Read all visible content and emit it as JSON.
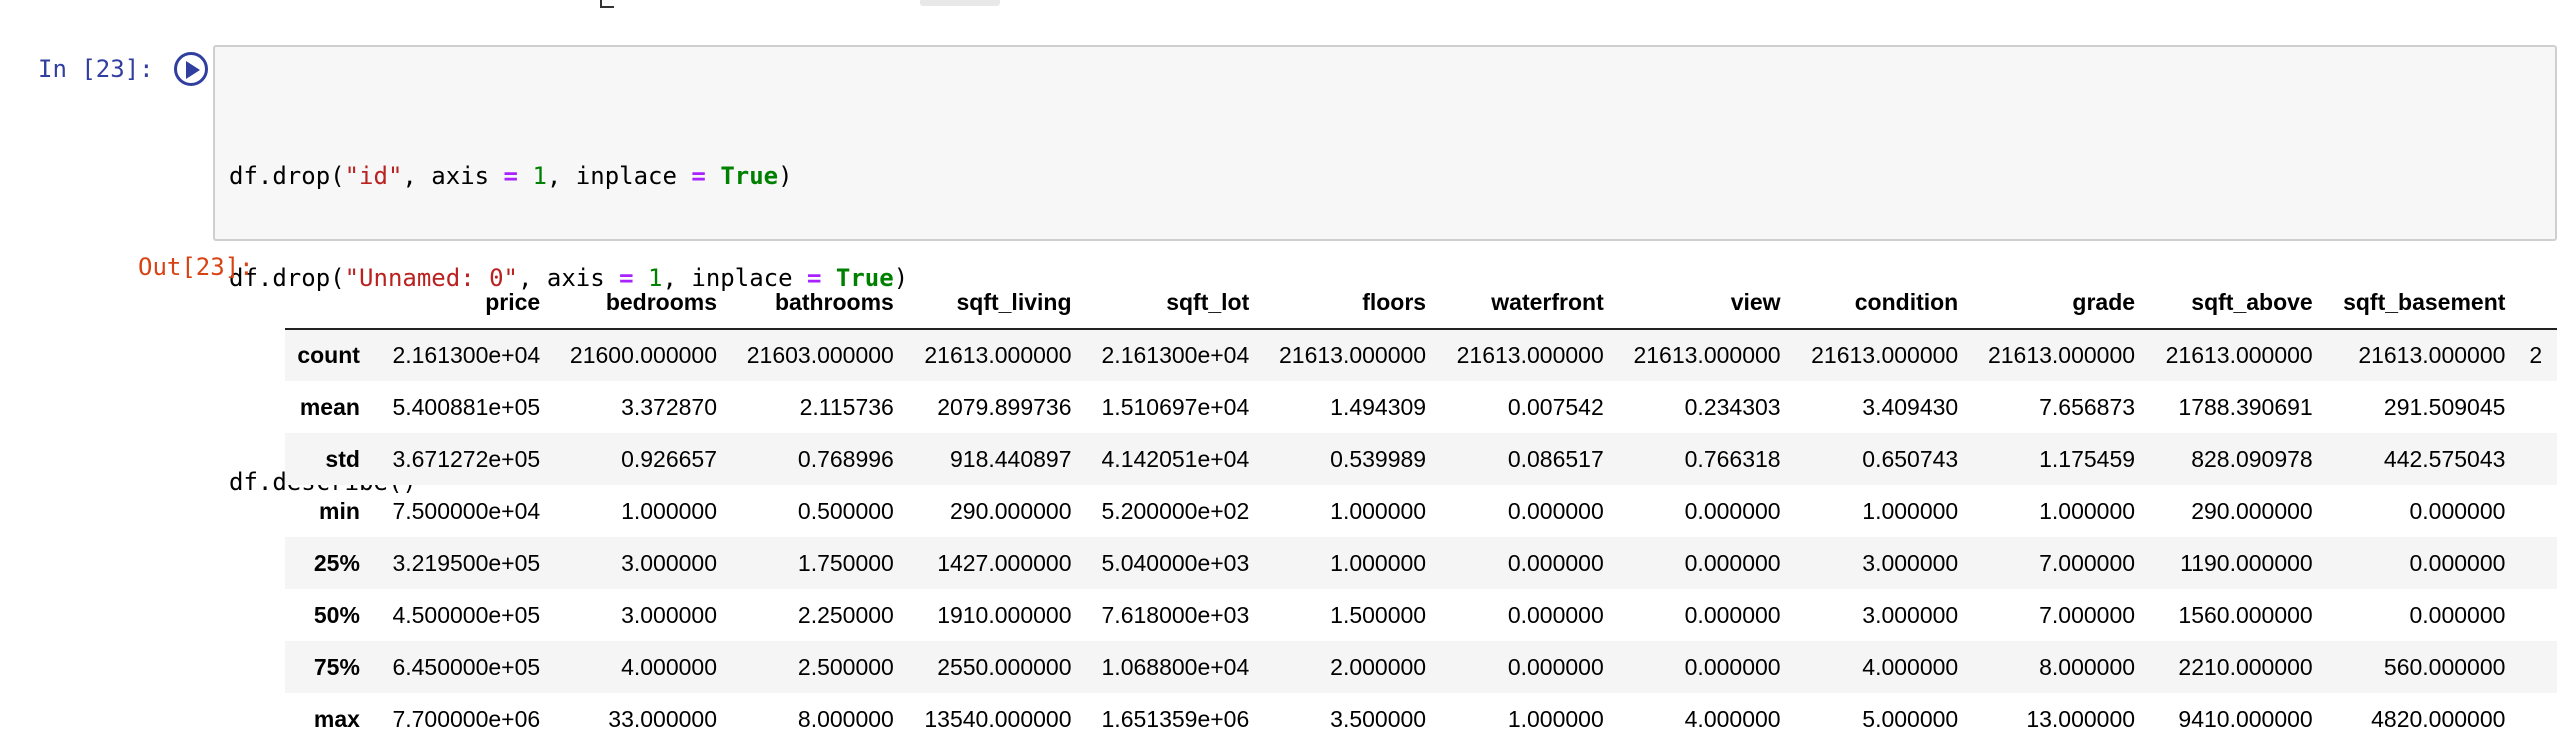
{
  "input_cell": {
    "prompt": "In [23]:",
    "code": {
      "l1_a": "df.drop(",
      "l1_str": "\"id\"",
      "l1_b": ", axis ",
      "l1_op": "=",
      "l1_c": " ",
      "l1_num": "1",
      "l1_d": ", inplace ",
      "l1_op2": "=",
      "l1_e": " ",
      "l1_kw": "True",
      "l1_f": ")",
      "l2_a": "df.drop(",
      "l2_str": "\"Unnamed: 0\"",
      "l2_b": ", axis ",
      "l2_op": "=",
      "l2_c": " ",
      "l2_num": "1",
      "l2_d": ", inplace ",
      "l2_op2": "=",
      "l2_e": " ",
      "l2_kw": "True",
      "l2_f": ")",
      "l4": "df.describe()"
    }
  },
  "output_cell": {
    "prompt": "Out[23]:",
    "table": {
      "columns": [
        "price",
        "bedrooms",
        "bathrooms",
        "sqft_living",
        "sqft_lot",
        "floors",
        "waterfront",
        "view",
        "condition",
        "grade",
        "sqft_above",
        "sqft_basement"
      ],
      "rows": [
        {
          "label": "count",
          "values": [
            "2.161300e+04",
            "21600.000000",
            "21603.000000",
            "21613.000000",
            "2.161300e+04",
            "21613.000000",
            "21613.000000",
            "21613.000000",
            "21613.000000",
            "21613.000000",
            "21613.000000",
            "21613.000000"
          ],
          "overflow": "2"
        },
        {
          "label": "mean",
          "values": [
            "5.400881e+05",
            "3.372870",
            "2.115736",
            "2079.899736",
            "1.510697e+04",
            "1.494309",
            "0.007542",
            "0.234303",
            "3.409430",
            "7.656873",
            "1788.390691",
            "291.509045"
          ],
          "overflow": ""
        },
        {
          "label": "std",
          "values": [
            "3.671272e+05",
            "0.926657",
            "0.768996",
            "918.440897",
            "4.142051e+04",
            "0.539989",
            "0.086517",
            "0.766318",
            "0.650743",
            "1.175459",
            "828.090978",
            "442.575043"
          ],
          "overflow": ""
        },
        {
          "label": "min",
          "values": [
            "7.500000e+04",
            "1.000000",
            "0.500000",
            "290.000000",
            "5.200000e+02",
            "1.000000",
            "0.000000",
            "0.000000",
            "1.000000",
            "1.000000",
            "290.000000",
            "0.000000"
          ],
          "overflow": ""
        },
        {
          "label": "25%",
          "values": [
            "3.219500e+05",
            "3.000000",
            "1.750000",
            "1427.000000",
            "5.040000e+03",
            "1.000000",
            "0.000000",
            "0.000000",
            "3.000000",
            "7.000000",
            "1190.000000",
            "0.000000"
          ],
          "overflow": ""
        },
        {
          "label": "50%",
          "values": [
            "4.500000e+05",
            "3.000000",
            "2.250000",
            "1910.000000",
            "7.618000e+03",
            "1.500000",
            "0.000000",
            "0.000000",
            "3.000000",
            "7.000000",
            "1560.000000",
            "0.000000"
          ],
          "overflow": ""
        },
        {
          "label": "75%",
          "values": [
            "6.450000e+05",
            "4.000000",
            "2.500000",
            "2550.000000",
            "1.068800e+04",
            "2.000000",
            "0.000000",
            "0.000000",
            "4.000000",
            "8.000000",
            "2210.000000",
            "560.000000"
          ],
          "overflow": ""
        },
        {
          "label": "max",
          "values": [
            "7.700000e+06",
            "33.000000",
            "8.000000",
            "13540.000000",
            "1.651359e+06",
            "3.500000",
            "1.000000",
            "4.000000",
            "5.000000",
            "13.000000",
            "9410.000000",
            "4820.000000"
          ],
          "overflow": ""
        }
      ]
    }
  },
  "colors": {
    "in_prompt": "#303f9f",
    "out_prompt": "#d84315",
    "string": "#ba2121",
    "operator": "#aa22ff",
    "number": "#008000",
    "keyword": "#008000"
  },
  "icons": {
    "run": "run-icon"
  }
}
